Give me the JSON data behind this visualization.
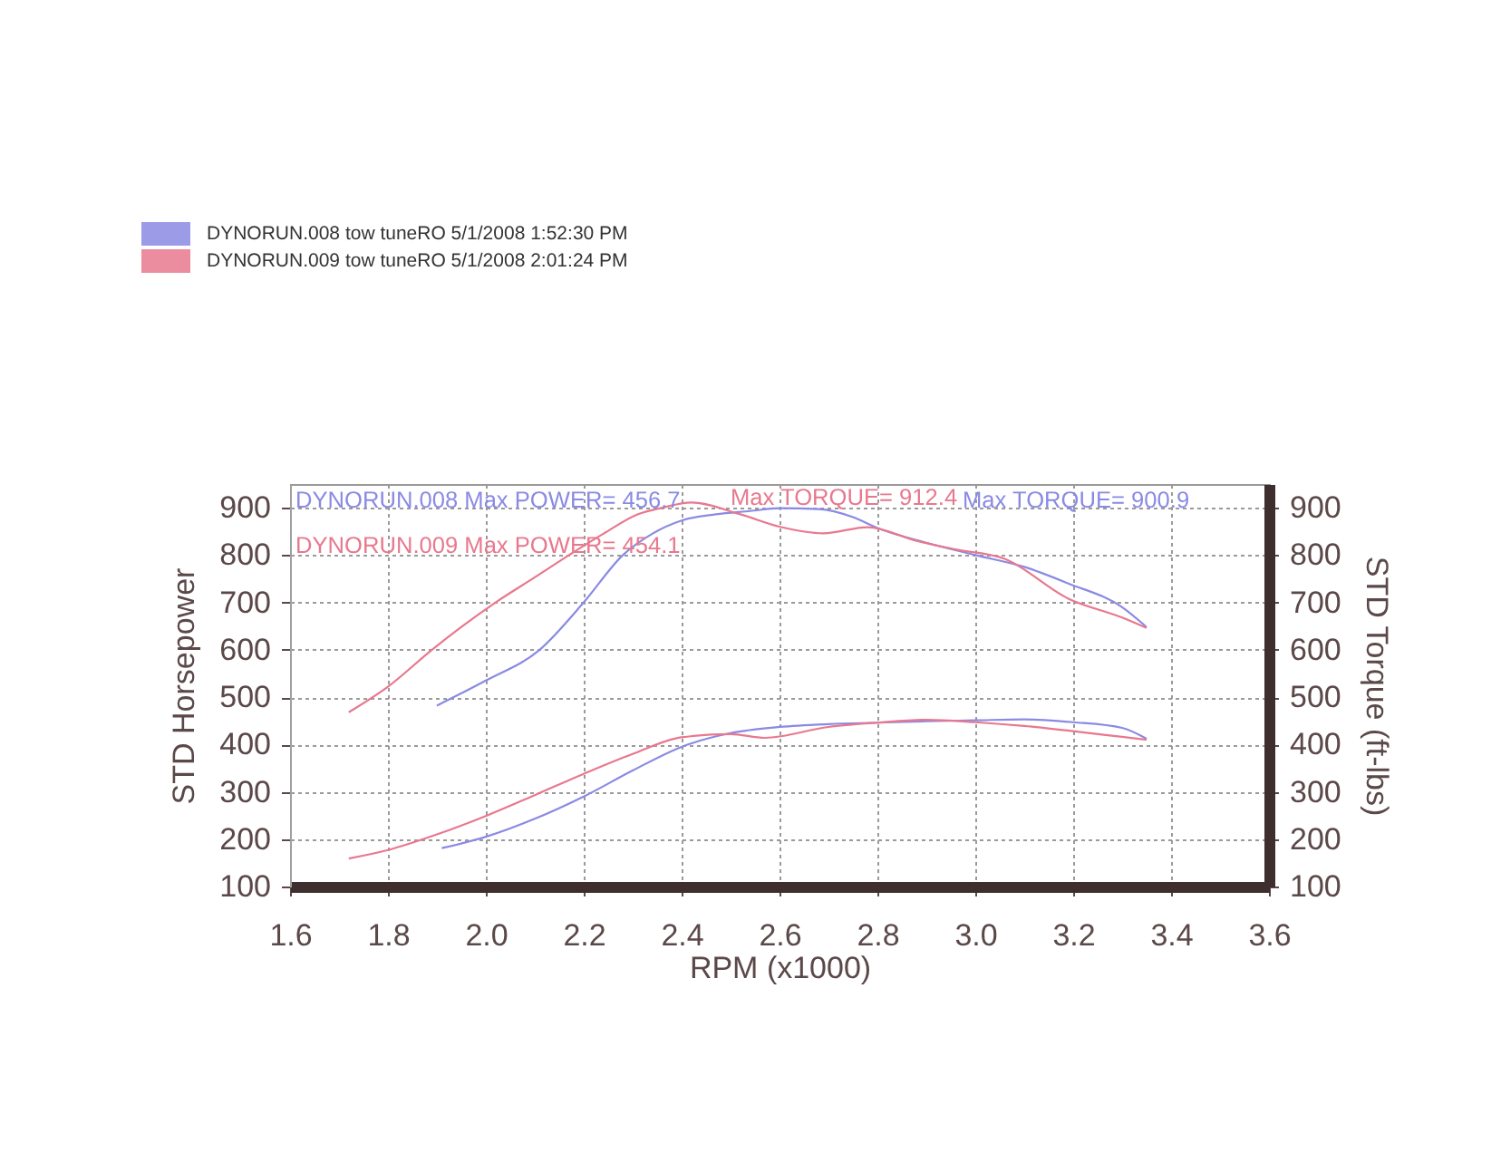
{
  "chart_data": {
    "type": "line",
    "xlabel": "RPM (x1000)",
    "ylabel": "STD Horsepower",
    "y2label": "STD Torque (ft-lbs)",
    "xlim": [
      1.6,
      3.6
    ],
    "xticks": [
      1.6,
      1.8,
      {
        "value": 2,
        "label": "2.0"
      },
      2.2,
      2.4,
      2.6,
      2.8,
      {
        "value": 3,
        "label": "3.0"
      },
      3.2,
      3.4,
      3.6
    ],
    "ylim": [
      100,
      950
    ],
    "yticks": [
      100,
      200,
      300,
      400,
      500,
      600,
      700,
      800,
      900
    ],
    "y2lim": [
      100,
      950
    ],
    "y2ticks": [
      100,
      200,
      300,
      400,
      500,
      600,
      700,
      800,
      900
    ],
    "grid": true,
    "legend": "top left",
    "series": [
      {
        "name": "DYNORUN.008 tow tuneRO 5/1/2008 1:52:30 PM",
        "color": "#8a8ae4",
        "x": [
          1.91,
          2.0,
          2.1,
          2.2,
          2.3,
          2.4,
          2.5,
          2.6,
          2.7,
          2.8,
          2.9,
          3.0,
          3.1,
          3.2,
          3.3,
          3.35
        ],
        "values": [
          181,
          205,
          243,
          290,
          345,
          395,
          424,
          437,
          443,
          446,
          449,
          451,
          453,
          447,
          435,
          412
        ]
      },
      {
        "name": "DYNORUN.009 tow tuneRO 5/1/2008 2:01:24 PM",
        "color": "#e8788e",
        "x": [
          1.72,
          1.8,
          1.9,
          2.0,
          2.1,
          2.2,
          2.3,
          2.4,
          2.5,
          2.57,
          2.7,
          2.8,
          2.9,
          3.0,
          3.1,
          3.2,
          3.3,
          3.35
        ],
        "values": [
          159,
          177,
          210,
          249,
          293,
          338,
          380,
          415,
          422,
          414,
          437,
          446,
          452,
          447,
          439,
          428,
          416,
          410
        ]
      },
      {
        "color": "#8a8ae4",
        "axis": "y2",
        "x": [
          1.9,
          2.0,
          2.11,
          2.2,
          2.28,
          2.34,
          2.4,
          2.47,
          2.54,
          2.6,
          2.68,
          2.75,
          2.8,
          2.9,
          3.0,
          3.1,
          3.19,
          3.3,
          3.35
        ],
        "values": [
          482,
          535,
          600,
          700,
          800,
          845,
          873,
          886,
          893,
          899,
          897,
          880,
          857,
          826,
          800,
          775,
          740,
          690,
          648
        ]
      },
      {
        "color": "#e8788e",
        "axis": "y2",
        "x": [
          1.72,
          1.8,
          1.89,
          2.02,
          2.1,
          2.17,
          2.24,
          2.31,
          2.36,
          2.42,
          2.52,
          2.6,
          2.69,
          2.78,
          2.88,
          2.96,
          3.06,
          3.19,
          3.3,
          3.35
        ],
        "values": [
          468,
          522,
          600,
          700,
          753,
          800,
          845,
          886,
          900,
          911,
          886,
          860,
          846,
          859,
          830,
          812,
          792,
          708,
          668,
          646
        ]
      }
    ],
    "annotations": [
      "DYNORUN.008 Max POWER= 456.7",
      "DYNORUN.009 Max POWER= 454.1",
      "Max TORQUE= 900.9",
      "Max TORQUE= 912.4"
    ]
  }
}
